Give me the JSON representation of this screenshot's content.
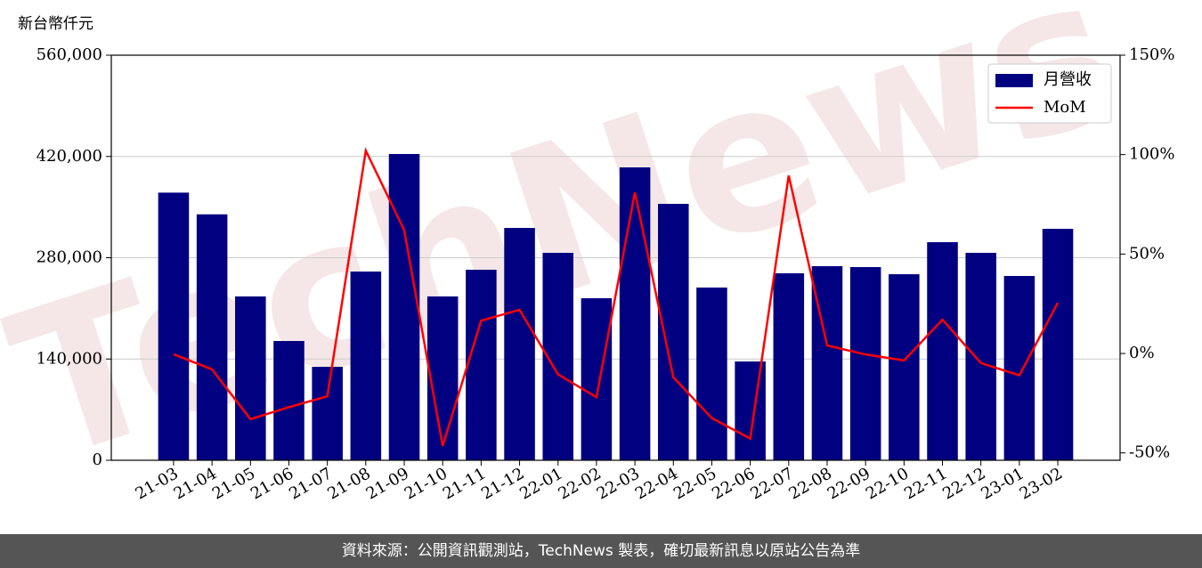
{
  "chart_data": {
    "type": "bar-line",
    "watermark": "TechNews",
    "y_axis_label": "新台幣仟元",
    "categories": [
      "21-03",
      "21-04",
      "21-05",
      "21-06",
      "21-07",
      "21-08",
      "21-09",
      "21-10",
      "21-11",
      "21-12",
      "22-01",
      "22-02",
      "22-03",
      "22-04",
      "22-05",
      "22-06",
      "22-07",
      "22-08",
      "22-09",
      "22-10",
      "22-11",
      "22-12",
      "23-01",
      "23-02"
    ],
    "series": [
      {
        "name": "月營收",
        "type": "bar",
        "color": "#000080",
        "values": [
          370000,
          340000,
          226500,
          164900,
          129200,
          260900,
          423400,
          226500,
          263400,
          321200,
          286800,
          224000,
          404900,
          354500,
          238800,
          136600,
          258500,
          268300,
          267100,
          257200,
          301500,
          286800,
          254800,
          320000
        ]
      },
      {
        "name": "MoM",
        "type": "line",
        "axis": "y2",
        "color": "#ff0000",
        "values": [
          -0.4,
          -8,
          -33,
          -27,
          -21.5,
          102,
          62,
          -46.5,
          16.5,
          22,
          -10.5,
          -22,
          81,
          -12,
          -32.5,
          -42.8,
          89.5,
          4,
          -0.5,
          -3.5,
          17,
          -4.8,
          -11,
          25.5
        ]
      }
    ],
    "ylim": [
      0,
      560000
    ],
    "yticks": [
      {
        "value": 0,
        "label": "0"
      },
      {
        "value": 140000,
        "label": "140,000"
      },
      {
        "value": 280000,
        "label": "280,000"
      },
      {
        "value": 420000,
        "label": "420,000"
      },
      {
        "value": 560000,
        "label": "560,000"
      }
    ],
    "y2lim": [
      -53.7,
      150
    ],
    "y2ticks": [
      {
        "value": -50,
        "label": "-50%"
      },
      {
        "value": 0,
        "label": "0%"
      },
      {
        "value": 50,
        "label": "50%"
      },
      {
        "value": 100,
        "label": "100%"
      },
      {
        "value": 150,
        "label": "150%"
      }
    ],
    "grid": true,
    "legend": "upper right"
  },
  "footer": "資料來源：公開資訊觀測站，TechNews 製表，確切最新訊息以原站公告為準"
}
